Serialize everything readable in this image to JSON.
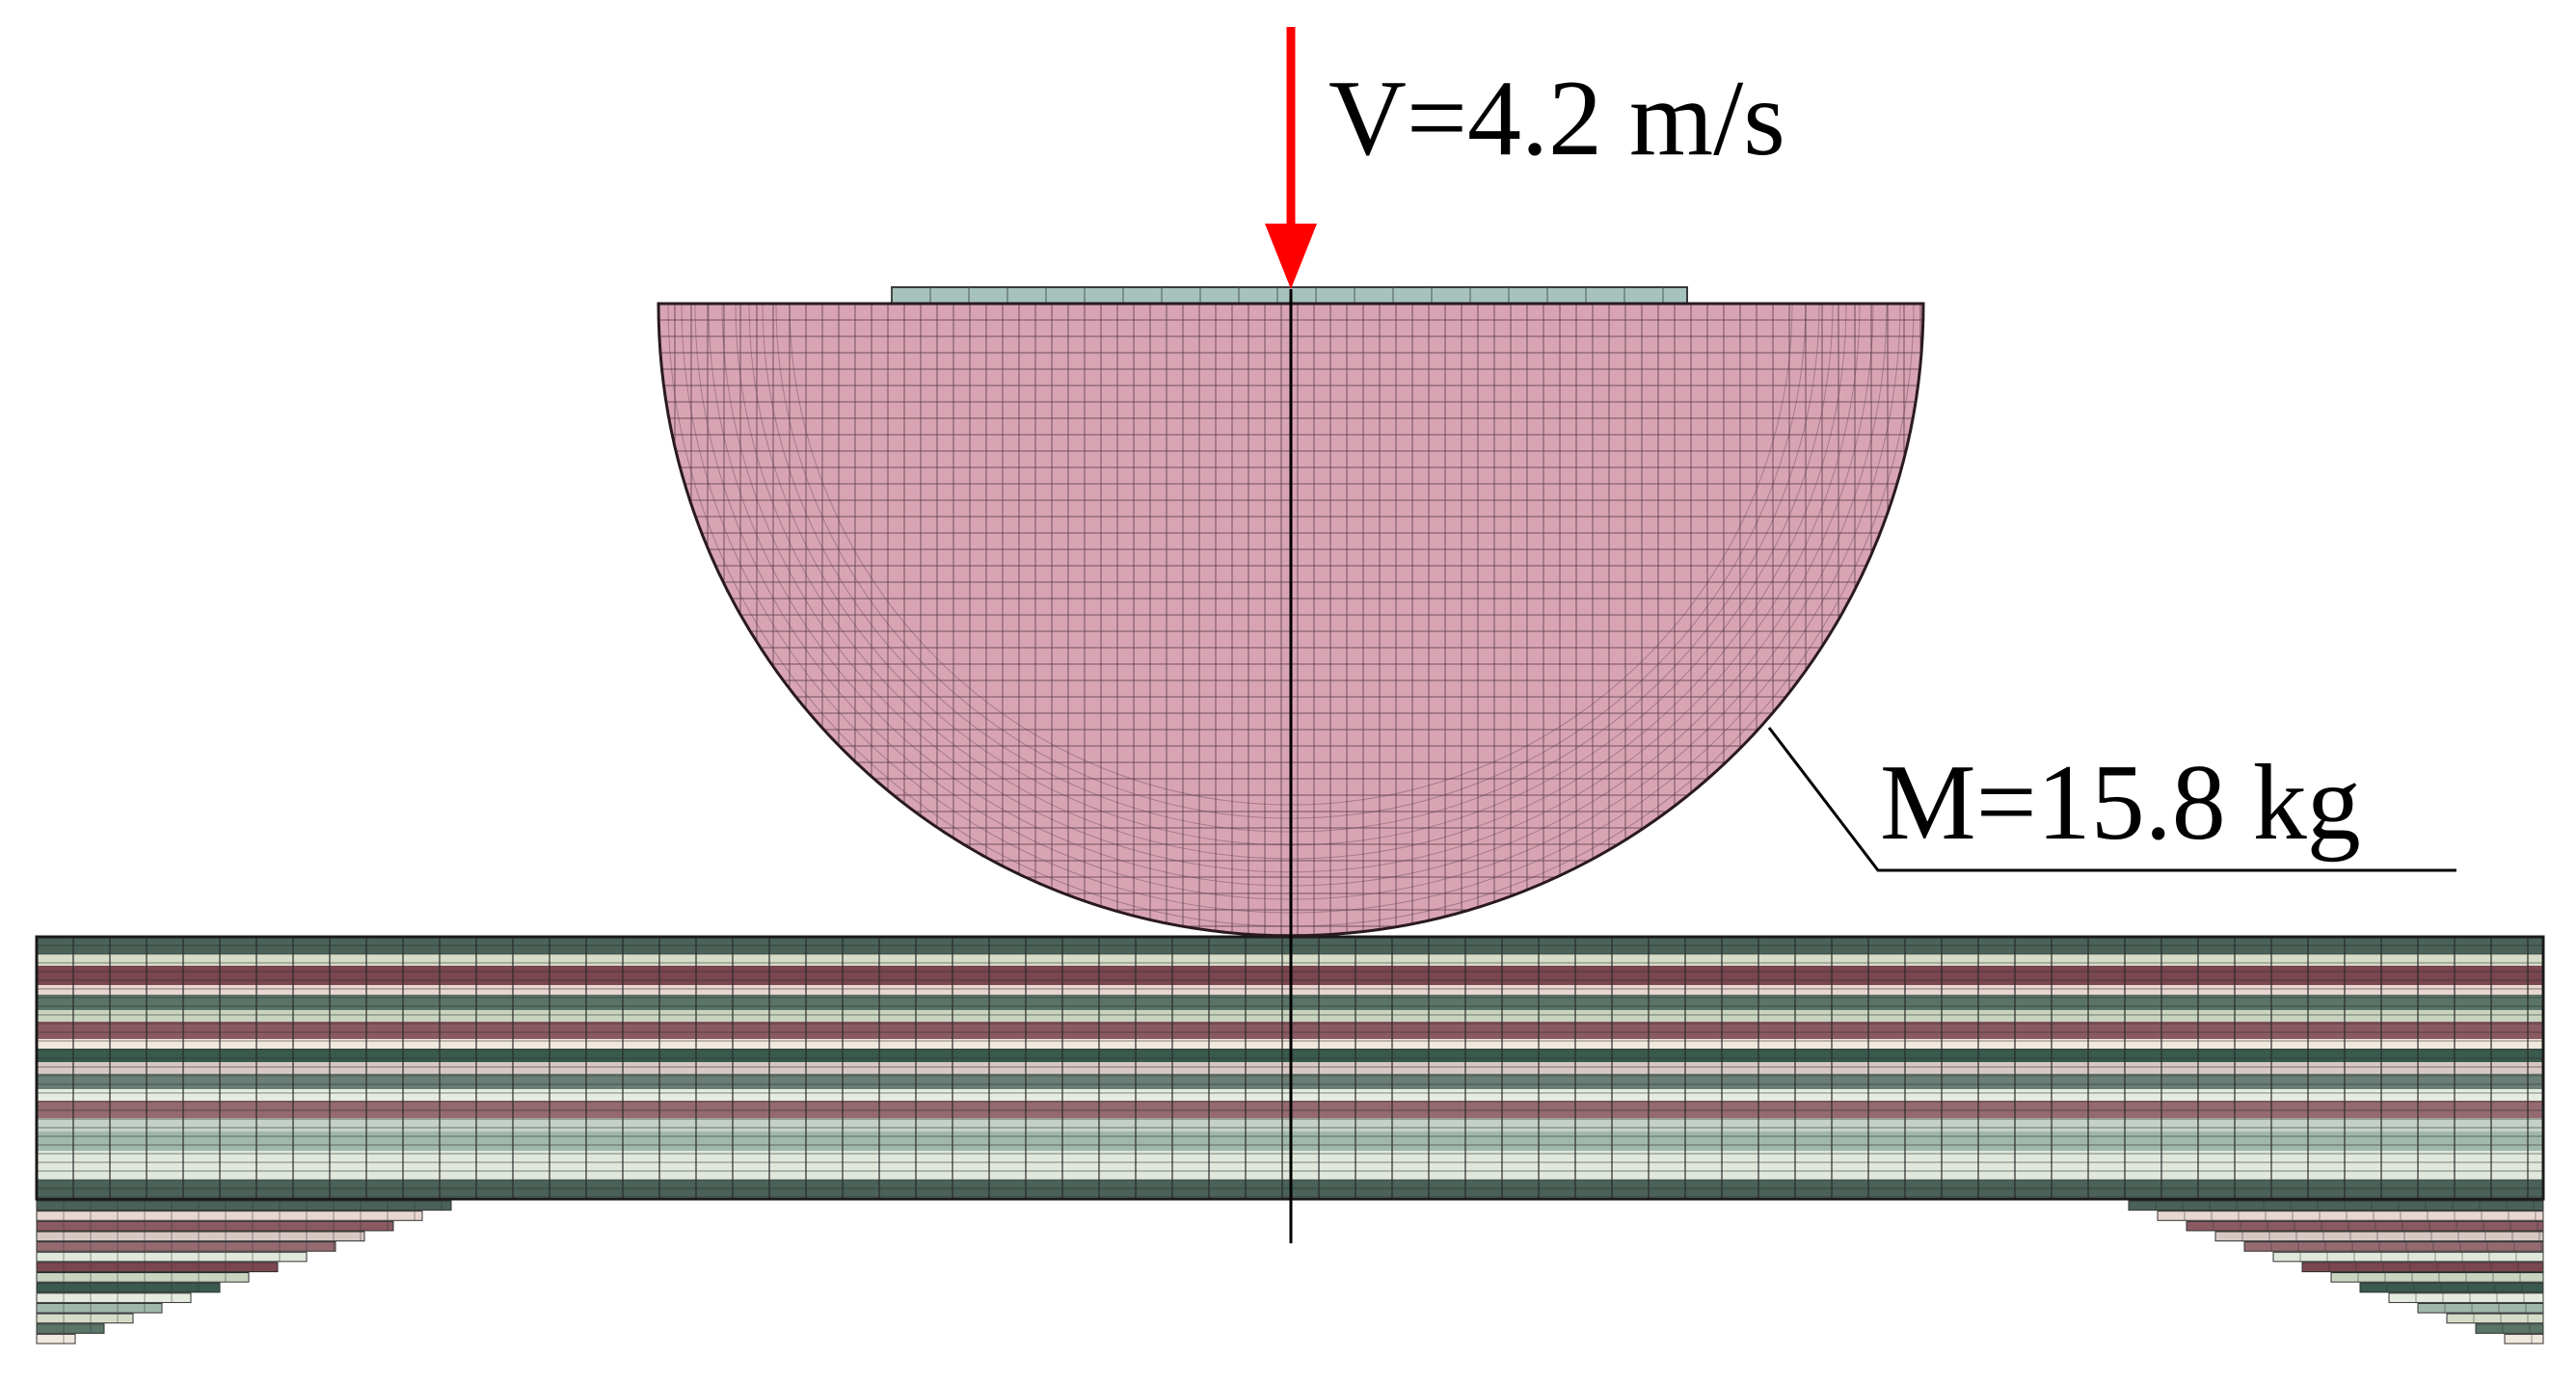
{
  "labels": {
    "velocity": "V=4.2 m/s",
    "mass": "M=15.8 kg"
  },
  "colors": {
    "impactor_fill": "#d8a4b4",
    "impactor_mesh": "#4a2e38",
    "cap_fill": "#a6c2bc",
    "arrow": "#ff0000",
    "axis": "#000000",
    "plate_mesh": "#2a2a2a",
    "plate_layers": [
      "#4a6258",
      "#d6dcc8",
      "#7a4650",
      "#e8d6d0",
      "#5a7468",
      "#c8d4c0",
      "#8a5a62",
      "#f0e8dc",
      "#3a5a4e",
      "#d8c8c4",
      "#6a7e76",
      "#e4ece0",
      "#946a70",
      "#c4d0c8",
      "#a0b8ac",
      "#e0e8dc"
    ]
  }
}
